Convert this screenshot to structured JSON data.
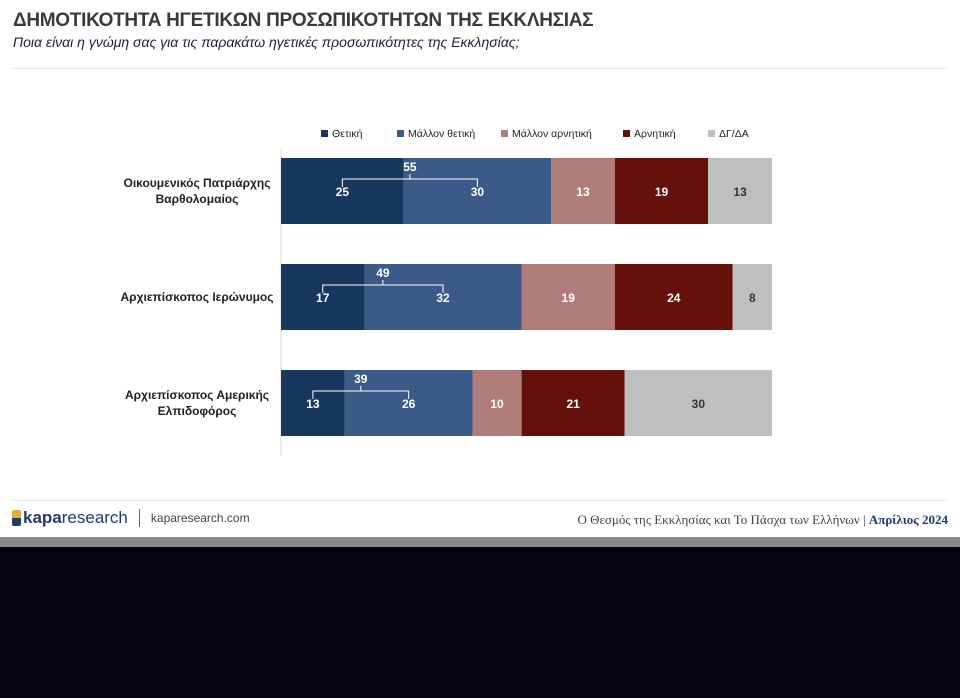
{
  "header": {
    "title": "ΔΗΜΟΤΙΚΟΤΗΤΑ ΗΓΕΤΙΚΩΝ ΠΡΟΣΩΠΙΚΟΤΗΤΩΝ ΤΗΣ ΕΚΚΛΗΣΙΑΣ",
    "subtitle": "Ποια είναι η γνώμη σας για τις παρακάτω ηγετικές προσωπικότητες της Εκκλησίας;"
  },
  "chart_data": {
    "type": "bar",
    "orientation": "horizontal-stacked-100",
    "legend_position": "top",
    "categories": [
      [
        "Οικουμενικός Πατριάρχης",
        "Βαρθολομαίος"
      ],
      [
        "Αρχιεπίσκοπος Ιερώνυμος"
      ],
      [
        "Αρχιεπίσκοπος Αμερικής",
        "Ελπιδοφόρος"
      ]
    ],
    "series": [
      {
        "name": "Θετική",
        "color": "#17375e",
        "values": [
          25,
          17,
          13
        ]
      },
      {
        "name": "Μάλλον θετική",
        "color": "#3b5a88",
        "values": [
          30,
          32,
          26
        ]
      },
      {
        "name": "Μάλλον αρνητική",
        "color": "#b07d7b",
        "values": [
          13,
          19,
          10
        ]
      },
      {
        "name": "Αρνητική",
        "color": "#66100b",
        "values": [
          19,
          24,
          21
        ]
      },
      {
        "name": "ΔΓ/ΔΑ",
        "color": "#bfbfbf",
        "values": [
          13,
          8,
          30
        ]
      }
    ],
    "positive_totals": [
      55,
      49,
      39
    ],
    "xlim": [
      0,
      100
    ]
  },
  "footer": {
    "brand_bold": "kapa",
    "brand": "research",
    "site": "kaparesearch.com",
    "survey": "Ο Θεσμός της Εκκλησίας και Το Πάσχα των Ελλήνων",
    "separator": "|",
    "date": "Απρίλιος 2024"
  }
}
